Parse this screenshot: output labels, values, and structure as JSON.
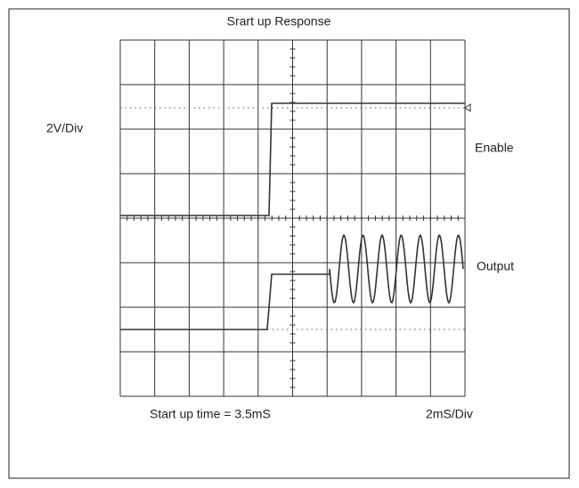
{
  "title": "Srart up Response",
  "vertical_scale": "2V/Div",
  "traces": [
    {
      "label": "Enable"
    },
    {
      "label": "Output"
    }
  ],
  "footer": {
    "note": "Start up time = 3.5mS",
    "horizontal_scale": "2mS/Div"
  }
}
